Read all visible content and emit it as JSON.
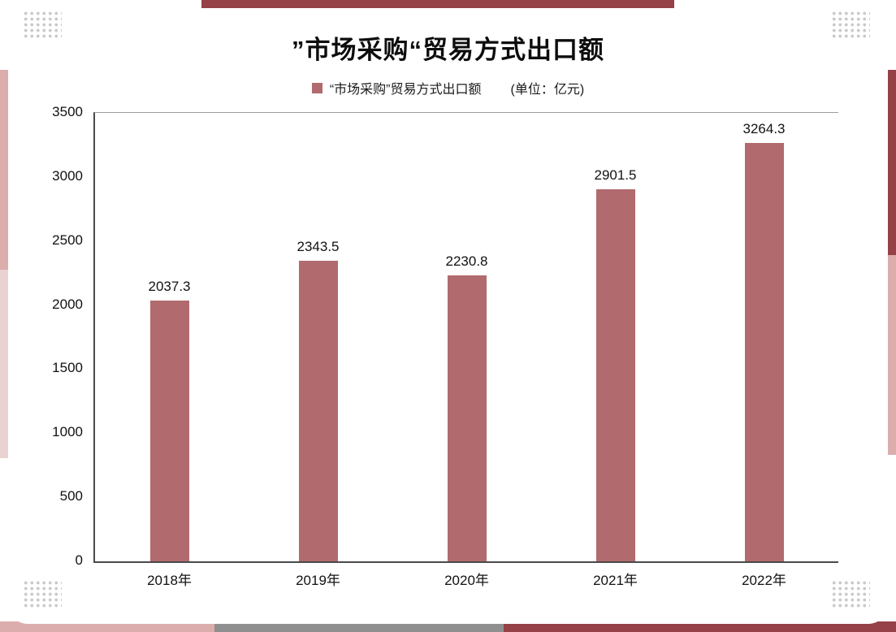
{
  "title": "”市场采购“贸易方式出口额",
  "legend": {
    "label": "“市场采购”贸易方式出口额",
    "unit": "(单位：亿元)"
  },
  "chart_data": {
    "type": "bar",
    "title": "”市场采购“贸易方式出口额",
    "categories": [
      "2018年",
      "2019年",
      "2020年",
      "2021年",
      "2022年"
    ],
    "values": [
      2037.3,
      2343.5,
      2230.8,
      2901.5,
      3264.3
    ],
    "xlabel": "",
    "ylabel": "",
    "ylim": [
      0,
      3500
    ],
    "yticks": [
      0,
      500,
      1000,
      1500,
      2000,
      2500,
      3000,
      3500
    ],
    "bar_color": "#b16a6e",
    "grid": false,
    "legend_position": "top"
  },
  "decor_colors": {
    "maroon": "#964147",
    "pink": "#dcadad",
    "light_pink": "#ead2d2",
    "gray": "#8f8f8f"
  }
}
